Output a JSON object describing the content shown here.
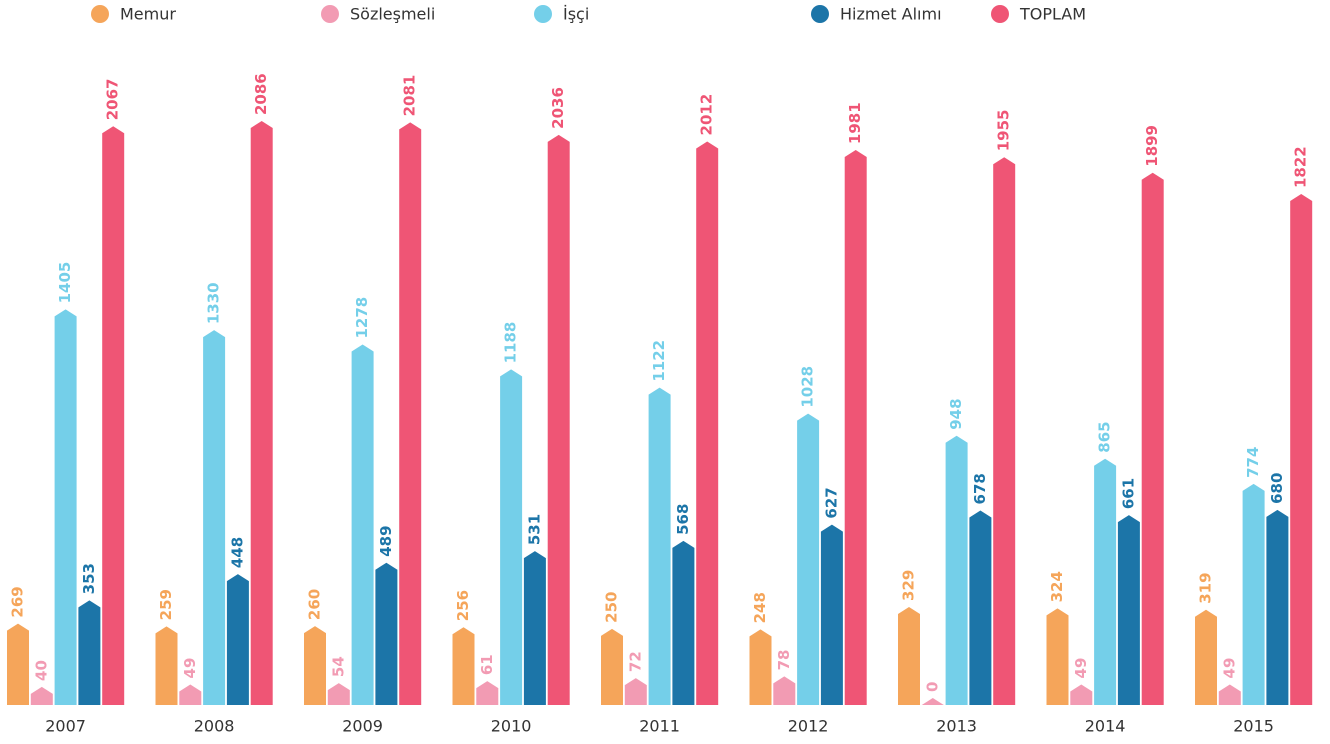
{
  "chart_data": {
    "type": "bar",
    "categories": [
      "2007",
      "2008",
      "2009",
      "2010",
      "2011",
      "2012",
      "2013",
      "2014",
      "2015"
    ],
    "series": [
      {
        "name": "Memur",
        "color": "#f5a55a",
        "values": [
          269,
          259,
          260,
          256,
          250,
          248,
          329,
          324,
          319
        ]
      },
      {
        "name": "Sözleşmeli",
        "color": "#f29bb3",
        "values": [
          40,
          49,
          54,
          61,
          72,
          78,
          0,
          49,
          49
        ]
      },
      {
        "name": "İşçi",
        "color": "#74cfe9",
        "values": [
          1405,
          1330,
          1278,
          1188,
          1122,
          1028,
          948,
          865,
          774
        ]
      },
      {
        "name": "Hizmet Alımı",
        "color": "#1c75a8",
        "values": [
          353,
          448,
          489,
          531,
          568,
          627,
          678,
          661,
          680
        ]
      },
      {
        "name": "TOPLAM",
        "color": "#ef5575",
        "values": [
          2067,
          2086,
          2081,
          2036,
          2012,
          1981,
          1955,
          1899,
          1822
        ]
      }
    ],
    "legend": "top"
  }
}
